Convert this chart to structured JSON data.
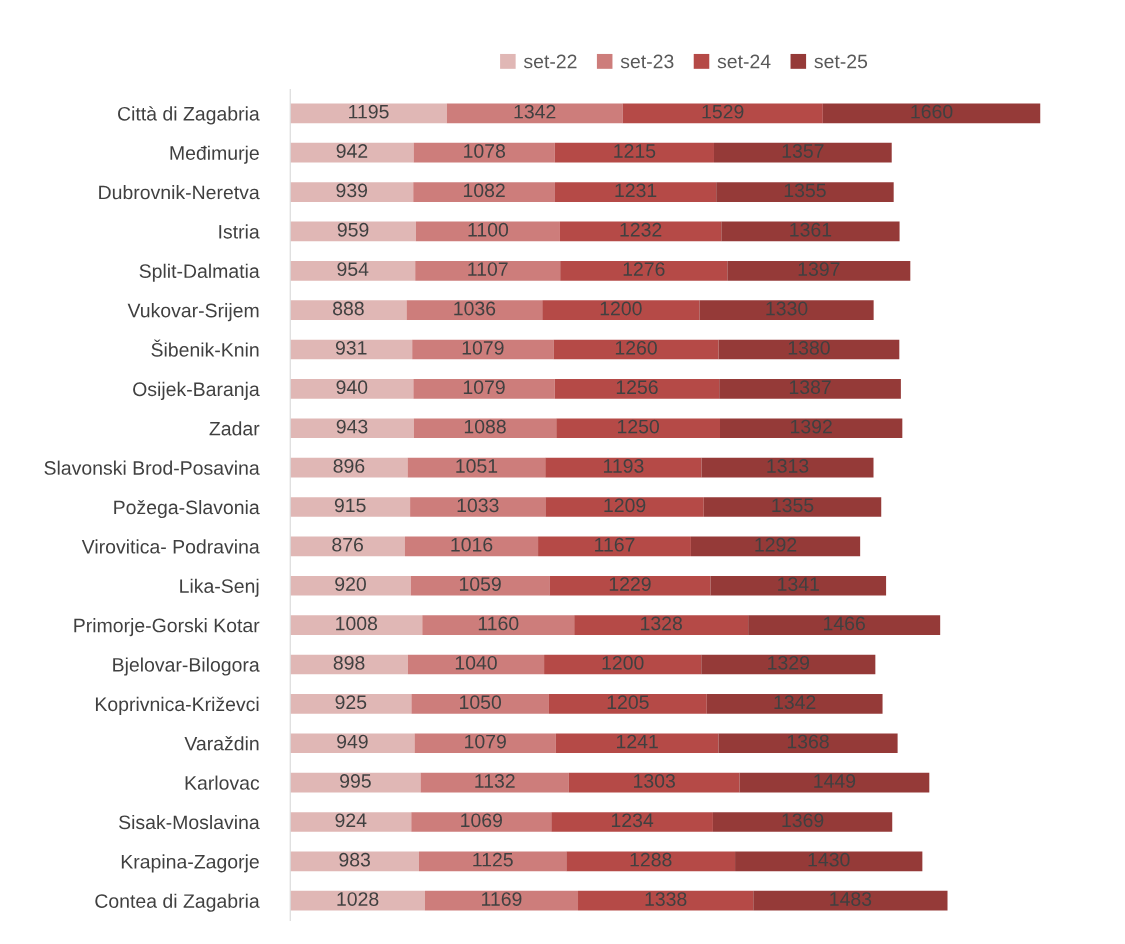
{
  "chart_data": {
    "type": "bar",
    "orientation": "horizontal",
    "stacked": true,
    "data_labels": true,
    "legend": "top",
    "grid": false,
    "categories": [
      "Città di Zagabria",
      "Međimurje",
      "Dubrovnik-Neretva",
      "Istria",
      "Split-Dalmatia",
      "Vukovar-Srijem",
      "Šibenik-Knin",
      "Osijek-Baranja",
      "Zadar",
      "Slavonski Brod-Posavina",
      "Požega-Slavonia",
      "Virovitica- Podravina",
      "Lika-Senj",
      "Primorje-Gorski Kotar",
      "Bjelovar-Bilogora",
      "Koprivnica-Križevci",
      "Varaždin",
      "Karlovac",
      "Sisak-Moslavina",
      "Krapina-Zagorje",
      "Contea di Zagabria"
    ],
    "series": [
      {
        "name": "set-22",
        "color": "#e0b7b5",
        "values": [
          1195,
          942,
          939,
          959,
          954,
          888,
          931,
          940,
          943,
          896,
          915,
          876,
          920,
          1008,
          898,
          925,
          949,
          995,
          924,
          983,
          1028
        ]
      },
      {
        "name": "set-23",
        "color": "#cd7d7b",
        "values": [
          1342,
          1078,
          1082,
          1100,
          1107,
          1036,
          1079,
          1079,
          1088,
          1051,
          1033,
          1016,
          1059,
          1160,
          1040,
          1050,
          1079,
          1132,
          1069,
          1125,
          1169
        ]
      },
      {
        "name": "set-24",
        "color": "#b54a47",
        "values": [
          1529,
          1215,
          1231,
          1232,
          1276,
          1200,
          1260,
          1256,
          1250,
          1193,
          1209,
          1167,
          1229,
          1328,
          1200,
          1205,
          1241,
          1303,
          1234,
          1288,
          1338
        ]
      },
      {
        "name": "set-25",
        "color": "#953a38",
        "values": [
          1660,
          1357,
          1355,
          1361,
          1397,
          1330,
          1380,
          1387,
          1392,
          1313,
          1355,
          1292,
          1341,
          1466,
          1329,
          1342,
          1368,
          1449,
          1369,
          1430,
          1483
        ]
      }
    ]
  }
}
